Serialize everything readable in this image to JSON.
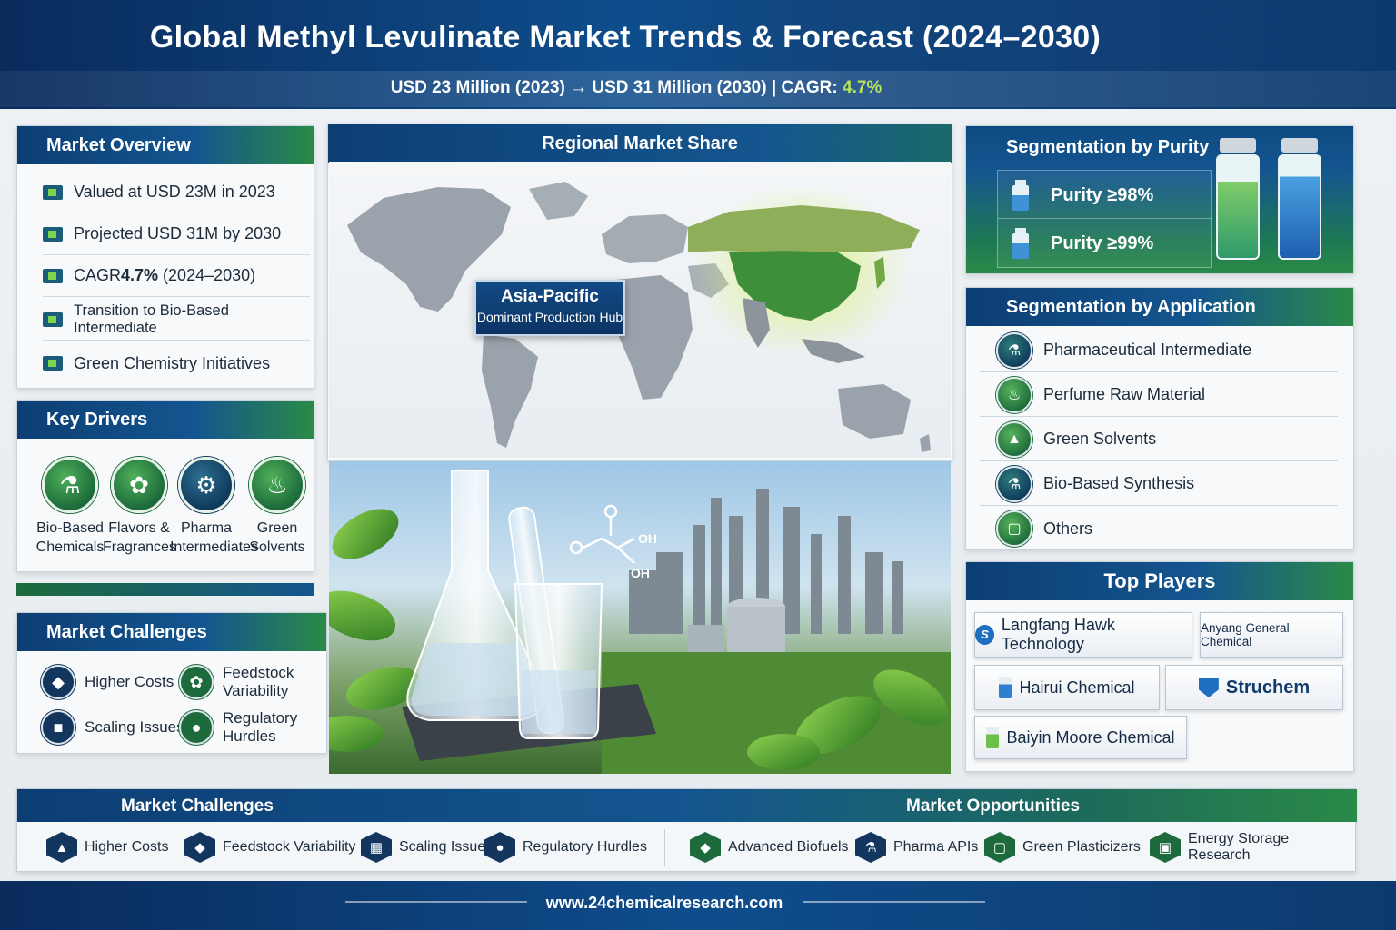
{
  "header": {
    "title": "Global Methyl Levulinate Market Trends & Forecast (2024–2030)",
    "subtitle_prefix": "USD 23 Million (2023) → USD 31 Million (2030)  |  CAGR: ",
    "subtitle_cagr": "4.7%"
  },
  "overview": {
    "title": "Market Overview",
    "items": [
      {
        "pre": "Valued at USD 23M in 2023",
        "strong": "",
        "post": ""
      },
      {
        "pre": "Projected USD 31M by 2030",
        "strong": "",
        "post": ""
      },
      {
        "pre": "CAGR ",
        "strong": "4.7%",
        "post": " (2024–2030)"
      },
      {
        "pre": "Transition to Bio-Based Intermediate",
        "strong": "",
        "post": ""
      },
      {
        "pre": "Green Chemistry Initiatives",
        "strong": "",
        "post": ""
      }
    ]
  },
  "drivers": {
    "title": "Key Drivers",
    "items": [
      {
        "line1": "Bio-Based",
        "line2": "Chemicals",
        "icon": "flask-icon"
      },
      {
        "line1": "Flavors &",
        "line2": "Fragrances",
        "icon": "fragrance-icon"
      },
      {
        "line1": "Pharma",
        "line2": "Intermediates",
        "icon": "pharma-icon"
      },
      {
        "line1": "Green",
        "line2": "Solvents",
        "icon": "bottle-icon"
      }
    ]
  },
  "challenges_panel": {
    "title": "Market Challenges",
    "items": [
      {
        "label": "Higher Costs",
        "icon": "cost-icon"
      },
      {
        "label": "Feedstock Variability",
        "icon": "leaf-icon"
      },
      {
        "label": "Scaling Issues",
        "icon": "lock-icon"
      },
      {
        "label": "Regulatory Hurdles",
        "icon": "location-icon"
      }
    ]
  },
  "regional": {
    "title": "Regional Market Share",
    "hub_title": "Asia-Pacific",
    "hub_sub": "Dominant Production Hub"
  },
  "molecule": {
    "oh1": "OH",
    "oh2": "OH"
  },
  "purity": {
    "title": "Segmentation by Purity",
    "items": [
      "Purity ≥98%",
      "Purity ≥99%"
    ]
  },
  "application": {
    "title": "Segmentation by Application",
    "items": [
      "Pharmaceutical Intermediate",
      "Perfume Raw Material",
      "Green Solvents",
      "Bio-Based Synthesis",
      "Others"
    ]
  },
  "players": {
    "title": "Top Players",
    "items": [
      "Langfang Hawk Technology",
      "Anyang General Chemical",
      "Hairui Chemical",
      "Struchem",
      "Baiyin Moore Chemical"
    ]
  },
  "bottom": {
    "challenges_title": "Market Challenges",
    "opportunities_title": "Market Opportunities",
    "challenges": [
      "Higher Costs",
      "Feedstock Variability",
      "Scaling Issues",
      "Regulatory Hurdles"
    ],
    "opportunities": [
      "Advanced Biofuels",
      "Pharma APIs",
      "Green Plasticizers",
      "Energy Storage Research"
    ]
  },
  "footer": {
    "url": "www.24chemicalresearch.com"
  },
  "colors": {
    "navy": "#0c3e74",
    "green": "#2a8a47",
    "accent_green": "#b6e35a"
  }
}
